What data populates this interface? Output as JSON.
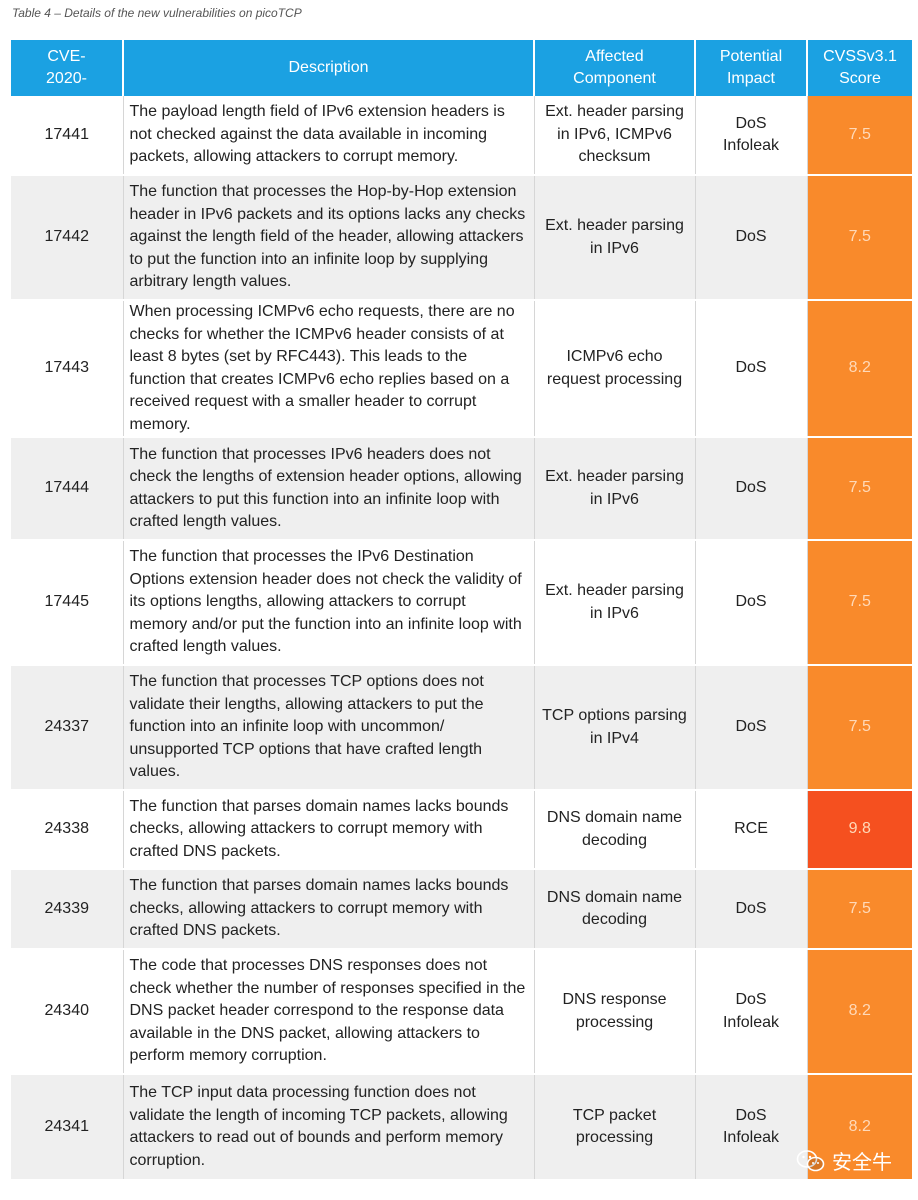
{
  "caption": "Table 4 – Details of the new vulnerabilities on picoTCP",
  "headers": {
    "cve": [
      "CVE-",
      "2020-"
    ],
    "description": "Description",
    "component": [
      "Affected",
      "Component"
    ],
    "impact": [
      "Potential",
      "Impact"
    ],
    "score": [
      "CVSSv3.1",
      "Score"
    ]
  },
  "rows": [
    {
      "cve": "17441",
      "description": "The payload length field of IPv6 extension headers is not checked against the data available in incoming packets, allowing attackers to corrupt memory.",
      "component": "Ext. header parsing in IPv6, ICMPv6 checksum",
      "impact": [
        "DoS",
        "Infoleak"
      ],
      "score": "7.5"
    },
    {
      "cve": "17442",
      "description": "The function that processes the Hop-by-Hop extension header in IPv6 packets and its options lacks any checks against the length field of the header, allowing attackers to put the function into an infinite loop by supplying arbitrary length values.",
      "component": "Ext. header parsing in IPv6",
      "impact": [
        "DoS"
      ],
      "score": "7.5"
    },
    {
      "cve": "17443",
      "description": "When processing ICMPv6 echo requests, there are no checks for whether the ICMPv6 header consists of at least 8 bytes (set by RFC443). This leads to the function that creates ICMPv6 echo replies based on a received request with a smaller header to corrupt memory.",
      "component": "ICMPv6 echo request processing",
      "impact": [
        "DoS"
      ],
      "score": "8.2"
    },
    {
      "cve": "17444",
      "description": "The function that processes IPv6 headers does not check the lengths of extension header options, allowing attackers to put this function into an infinite loop with crafted length values.",
      "component": "Ext. header parsing in IPv6",
      "impact": [
        "DoS"
      ],
      "score": "7.5"
    },
    {
      "cve": "17445",
      "description": "The function that processes the IPv6 Destination Options extension header does not check the validity of its options lengths, allowing attackers to corrupt memory and/or put the function into an infinite loop with crafted length values.",
      "component": "Ext. header parsing in IPv6",
      "impact": [
        "DoS"
      ],
      "score": "7.5"
    },
    {
      "cve": "24337",
      "description": "The function that processes TCP options does not validate their lengths, allowing attackers to put the function into an infinite loop with uncommon/ unsupported TCP options that have crafted length values.",
      "component": "TCP options parsing in IPv4",
      "impact": [
        "DoS"
      ],
      "score": "7.5"
    },
    {
      "cve": "24338",
      "description": "The function that parses domain names lacks bounds checks, allowing attackers to corrupt memory with crafted DNS packets.",
      "component": "DNS domain name decoding",
      "impact": [
        "RCE"
      ],
      "score": "9.8"
    },
    {
      "cve": "24339",
      "description": "The function that parses domain names lacks bounds checks, allowing attackers to corrupt memory with crafted DNS packets.",
      "component": "DNS domain name decoding",
      "impact": [
        "DoS"
      ],
      "score": "7.5"
    },
    {
      "cve": "24340",
      "description": "The code that processes DNS responses does not check whether the number of responses specified in the DNS packet header correspond to the response data available in the DNS packet, allowing attackers to perform memory corruption.",
      "component": "DNS response processing",
      "impact": [
        "DoS",
        "Infoleak"
      ],
      "score": "8.2"
    },
    {
      "cve": "24341",
      "description": "The TCP input data processing function does not validate the length of incoming TCP packets, allowing attackers to read out of bounds and perform memory corruption.",
      "component": "TCP packet processing",
      "impact": [
        "DoS",
        "Infoleak"
      ],
      "score": "8.2"
    }
  ],
  "colors": {
    "header_bg": "#1ba1e2",
    "score_high": "#f98a2b",
    "score_critical": "#f5501f"
  },
  "watermark": {
    "icon": "wechat-icon",
    "text": "安全牛"
  }
}
